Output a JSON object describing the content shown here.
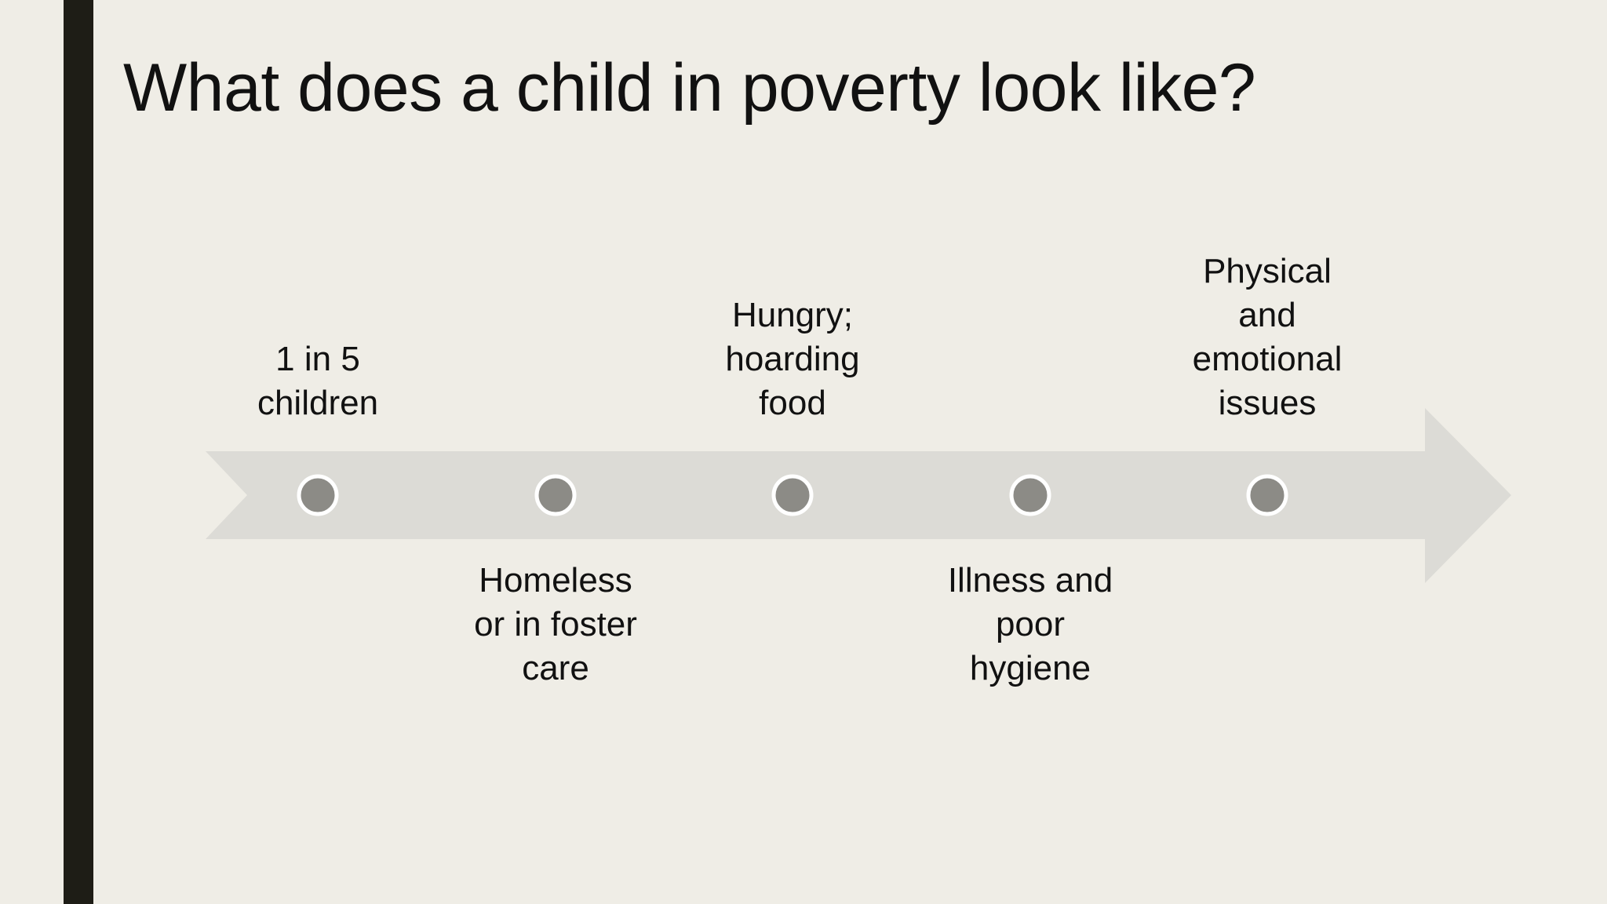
{
  "slide": {
    "title": "What does a child in poverty look like?"
  },
  "timeline": {
    "arrow_color": "#dcdbd6",
    "dot_color": "#8c8b86",
    "dot_border_color": "#ffffff",
    "accent_bar_color": "#1e1d16",
    "items": [
      {
        "label": "1 in 5\nchildren",
        "position": "above"
      },
      {
        "label": "Homeless\nor in foster\ncare",
        "position": "below"
      },
      {
        "label": "Hungry;\nhoarding\nfood",
        "position": "above"
      },
      {
        "label": "Illness and\npoor\nhygiene",
        "position": "below"
      },
      {
        "label": "Physical\nand\nemotional\nissues",
        "position": "above"
      }
    ]
  }
}
